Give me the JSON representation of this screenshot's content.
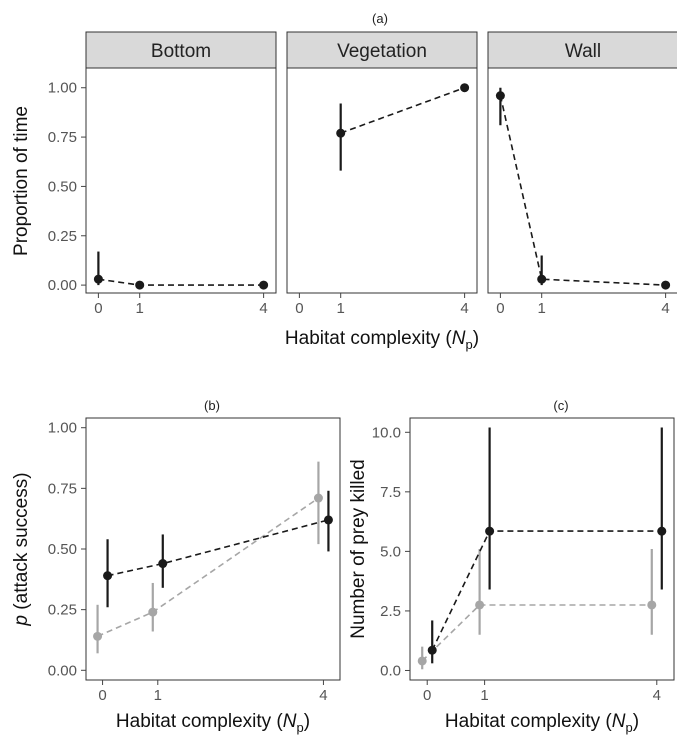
{
  "chart_data": [
    {
      "panel": "(a)",
      "type": "scatter",
      "facets": [
        "Bottom",
        "Vegetation",
        "Wall"
      ],
      "xlabel": "Habitat complexity",
      "xlabel_symbol": "N",
      "xlabel_subscript": "p",
      "ylabel": "Proportion of time",
      "xlim": [
        -0.3,
        4.3
      ],
      "ylim": [
        -0.04,
        1.1
      ],
      "x_ticks": [
        0,
        1,
        4
      ],
      "y_ticks": [
        0,
        0.25,
        0.5,
        0.75,
        1.0
      ],
      "y_tick_labels": [
        "0.00",
        "0.25",
        "0.50",
        "0.75",
        "1.00"
      ],
      "grid": false,
      "series": [
        {
          "facet": "Bottom",
          "color": "#1a1a1a",
          "points": [
            {
              "x": 0,
              "y": 0.03,
              "low": 0.0,
              "high": 0.17
            },
            {
              "x": 1,
              "y": 0.0,
              "low": null,
              "high": null
            },
            {
              "x": 4,
              "y": 0.0,
              "low": null,
              "high": null
            }
          ]
        },
        {
          "facet": "Vegetation",
          "color": "#1a1a1a",
          "points": [
            {
              "x": 1,
              "y": 0.77,
              "low": 0.58,
              "high": 0.92
            },
            {
              "x": 4,
              "y": 1.0,
              "low": null,
              "high": null
            }
          ]
        },
        {
          "facet": "Wall",
          "color": "#1a1a1a",
          "points": [
            {
              "x": 0,
              "y": 0.96,
              "low": 0.81,
              "high": 1.0
            },
            {
              "x": 1,
              "y": 0.03,
              "low": 0.0,
              "high": 0.15
            },
            {
              "x": 4,
              "y": 0.0,
              "low": null,
              "high": null
            }
          ]
        }
      ]
    },
    {
      "panel": "(b)",
      "type": "scatter",
      "xlabel": "Habitat complexity",
      "xlabel_symbol": "N",
      "xlabel_subscript": "p",
      "ylabel_symbol": "p",
      "ylabel": "(attack success)",
      "xlim": [
        -0.3,
        4.3
      ],
      "ylim": [
        -0.04,
        1.04
      ],
      "x_ticks": [
        0,
        1,
        4
      ],
      "y_ticks": [
        0,
        0.25,
        0.5,
        0.75,
        1.0
      ],
      "y_tick_labels": [
        "0.00",
        "0.25",
        "0.50",
        "0.75",
        "1.00"
      ],
      "grid": false,
      "series": [
        {
          "color": "#1a1a1a",
          "points": [
            {
              "x": 0,
              "y": 0.39,
              "low": 0.26,
              "high": 0.54
            },
            {
              "x": 1,
              "y": 0.44,
              "low": 0.34,
              "high": 0.56
            },
            {
              "x": 4,
              "y": 0.62,
              "low": 0.49,
              "high": 0.74
            }
          ]
        },
        {
          "color": "#a6a6a6",
          "points": [
            {
              "x": 0,
              "y": 0.14,
              "low": 0.07,
              "high": 0.27
            },
            {
              "x": 1,
              "y": 0.24,
              "low": 0.16,
              "high": 0.36
            },
            {
              "x": 4,
              "y": 0.71,
              "low": 0.52,
              "high": 0.86
            }
          ]
        }
      ]
    },
    {
      "panel": "(c)",
      "type": "scatter",
      "xlabel": "Habitat complexity",
      "xlabel_symbol": "N",
      "xlabel_subscript": "p",
      "ylabel": "Number of prey killed",
      "xlim": [
        -0.3,
        4.3
      ],
      "ylim": [
        -0.4,
        10.6
      ],
      "x_ticks": [
        0,
        1,
        4
      ],
      "y_ticks": [
        0,
        2.5,
        5,
        7.5,
        10
      ],
      "y_tick_labels": [
        "0.0",
        "2.5",
        "5.0",
        "7.5",
        "10.0"
      ],
      "grid": false,
      "series": [
        {
          "color": "#1a1a1a",
          "points": [
            {
              "x": 0,
              "y": 0.85,
              "low": 0.3,
              "high": 2.1
            },
            {
              "x": 1,
              "y": 5.85,
              "low": 3.4,
              "high": 10.2
            },
            {
              "x": 4,
              "y": 5.85,
              "low": 3.4,
              "high": 10.2
            }
          ]
        },
        {
          "color": "#a6a6a6",
          "points": [
            {
              "x": 0,
              "y": 0.4,
              "low": 0.05,
              "high": 1.0
            },
            {
              "x": 1,
              "y": 2.75,
              "low": 1.5,
              "high": 5.1
            },
            {
              "x": 4,
              "y": 2.75,
              "low": 1.5,
              "high": 5.1
            }
          ]
        }
      ]
    }
  ]
}
